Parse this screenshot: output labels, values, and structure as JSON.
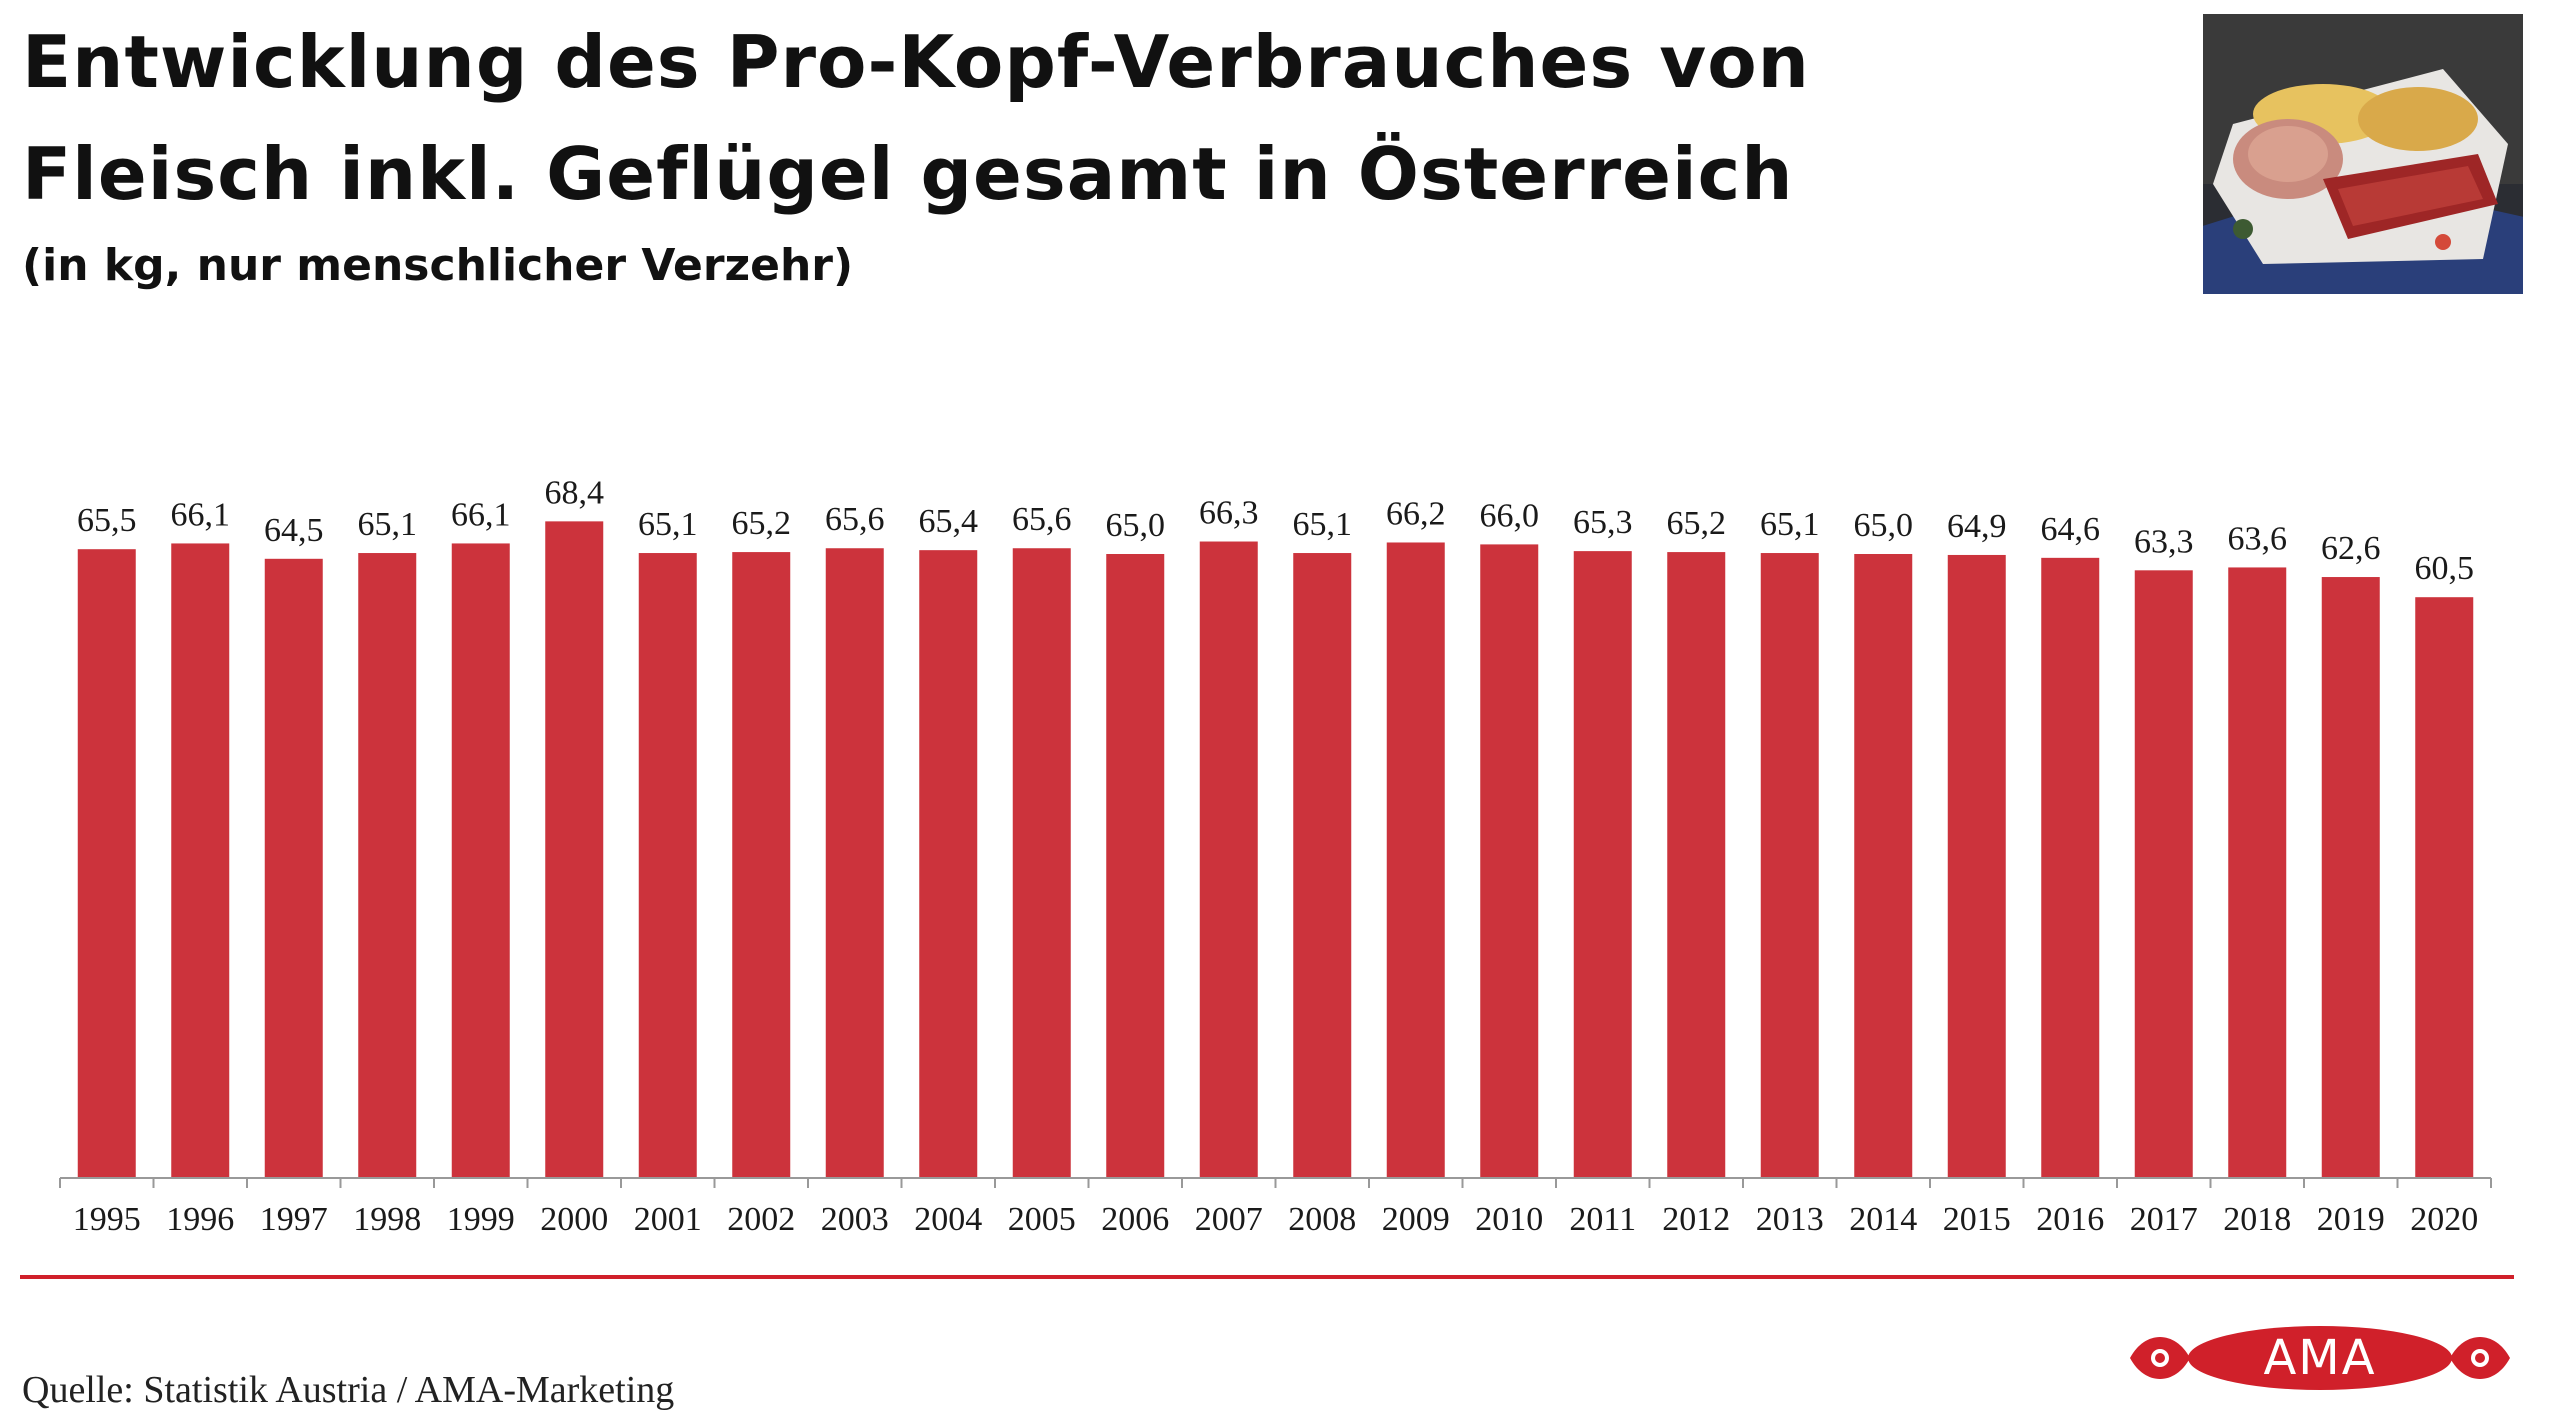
{
  "header": {
    "title_line1": "Entwicklung des Pro-Kopf-Verbrauches von",
    "title_line2": "Fleisch inkl. Geflügel gesamt in Österreich",
    "subtitle": "(in kg, nur menschlicher Verzehr)"
  },
  "footer": {
    "source": "Quelle: Statistik Austria / AMA-Marketing",
    "logo_text": "AMA"
  },
  "colors": {
    "bar": "#cc333c",
    "accent": "#d0202a",
    "axis": "#999999"
  },
  "chart_data": {
    "type": "bar",
    "categories": [
      "1995",
      "1996",
      "1997",
      "1998",
      "1999",
      "2000",
      "2001",
      "2002",
      "2003",
      "2004",
      "2005",
      "2006",
      "2007",
      "2008",
      "2009",
      "2010",
      "2011",
      "2012",
      "2013",
      "2014",
      "2015",
      "2016",
      "2017",
      "2018",
      "2019",
      "2020"
    ],
    "values": [
      65.5,
      66.1,
      64.5,
      65.1,
      66.1,
      68.4,
      65.1,
      65.2,
      65.6,
      65.4,
      65.6,
      65.0,
      66.3,
      65.1,
      66.2,
      66.0,
      65.3,
      65.2,
      65.1,
      65.0,
      64.9,
      64.6,
      63.3,
      63.6,
      62.6,
      60.5
    ],
    "labels": [
      "65,5",
      "66,1",
      "64,5",
      "65,1",
      "66,1",
      "68,4",
      "65,1",
      "65,2",
      "65,6",
      "65,4",
      "65,6",
      "65,0",
      "66,3",
      "65,1",
      "66,2",
      "66,0",
      "65,3",
      "65,2",
      "65,1",
      "65,0",
      "64,9",
      "64,6",
      "63,3",
      "63,6",
      "62,6",
      "60,5"
    ],
    "title": "Entwicklung des Pro-Kopf-Verbrauches von Fleisch inkl. Geflügel gesamt in Österreich",
    "subtitle": "(in kg, nur menschlicher Verzehr)",
    "xlabel": "",
    "ylabel": "",
    "ylim": [
      0,
      70
    ],
    "grid": false,
    "legend": "none"
  }
}
